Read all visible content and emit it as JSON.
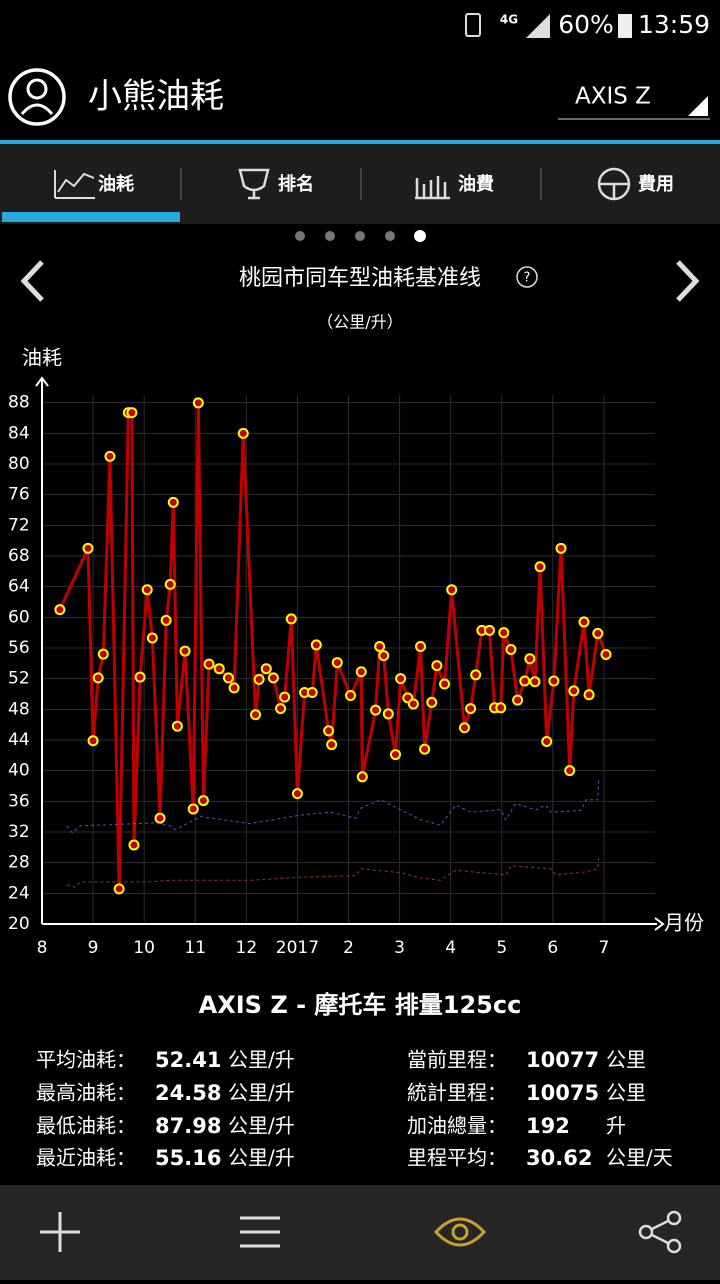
{
  "status_bar": {
    "network": "4G",
    "battery": "60%",
    "time": "13:59"
  },
  "header": {
    "title": "小熊油耗",
    "vehicle": "AXIS Z"
  },
  "tabs": [
    "油耗",
    "排名",
    "油費",
    "費用"
  ],
  "chart_data": {
    "type": "line",
    "title": "桃园市同车型油耗基准线",
    "subtitle": "（公里/升）",
    "y_label": "油耗",
    "x_label": "月份",
    "xlim": [
      0,
      12
    ],
    "xticks": [
      {
        "value": 0,
        "label": "8"
      },
      {
        "value": 1,
        "label": "9"
      },
      {
        "value": 2,
        "label": "10"
      },
      {
        "value": 3,
        "label": "11"
      },
      {
        "value": 4,
        "label": "12"
      },
      {
        "value": 5,
        "label": "2017"
      },
      {
        "value": 6,
        "label": "2"
      },
      {
        "value": 7,
        "label": "3"
      },
      {
        "value": 8,
        "label": "4"
      },
      {
        "value": 9,
        "label": "5"
      },
      {
        "value": 10,
        "label": "6"
      },
      {
        "value": 11,
        "label": "7"
      }
    ],
    "ylim": [
      20,
      89
    ],
    "yticks": [
      20,
      24,
      28,
      32,
      36,
      40,
      44,
      48,
      52,
      56,
      60,
      64,
      68,
      72,
      76,
      80,
      84,
      88
    ],
    "grid": true,
    "series": [
      {
        "color": "#c00000",
        "marker_color": "#ffff00",
        "markers": true,
        "dashed": false,
        "x": [
          0.35,
          0.9,
          1.0,
          1.1,
          1.2,
          1.33,
          1.51,
          1.69,
          1.76,
          1.8,
          1.92,
          2.06,
          2.16,
          2.31,
          2.43,
          2.51,
          2.57,
          2.65,
          2.8,
          2.96,
          3.06,
          3.16,
          3.27,
          3.47,
          3.65,
          3.76,
          3.94,
          4.18,
          4.25,
          4.39,
          4.53,
          4.67,
          4.75,
          4.88,
          5.0,
          5.14,
          5.29,
          5.37,
          5.61,
          5.67,
          5.78,
          6.04,
          6.25,
          6.27,
          6.53,
          6.61,
          6.69,
          6.78,
          6.92,
          7.02,
          7.16,
          7.27,
          7.41,
          7.49,
          7.63,
          7.73,
          7.88,
          8.02,
          8.27,
          8.39,
          8.49,
          8.61,
          8.76,
          8.86,
          8.98,
          9.04,
          9.18,
          9.31,
          9.45,
          9.55,
          9.65,
          9.75,
          9.88,
          10.02,
          10.16,
          10.33,
          10.41,
          10.61,
          10.71,
          10.88,
          11.04
        ],
        "values": [
          61.0,
          69.0,
          43.9,
          52.1,
          55.2,
          81.0,
          24.58,
          86.7,
          86.7,
          30.3,
          52.2,
          63.6,
          57.3,
          33.8,
          59.6,
          64.3,
          75.0,
          45.8,
          55.6,
          35.0,
          87.98,
          36.1,
          53.9,
          53.3,
          52.1,
          50.8,
          84.0,
          47.3,
          51.9,
          53.3,
          52.1,
          48.1,
          49.6,
          59.8,
          37.0,
          50.2,
          50.2,
          56.4,
          45.2,
          43.4,
          54.1,
          49.8,
          52.9,
          39.2,
          47.9,
          56.2,
          55.0,
          47.4,
          42.1,
          52.0,
          49.5,
          48.7,
          56.2,
          42.8,
          48.9,
          53.7,
          51.3,
          63.6,
          45.6,
          48.1,
          52.5,
          58.3,
          58.3,
          48.2,
          48.2,
          58.0,
          55.8,
          49.2,
          51.7,
          54.6,
          51.6,
          66.6,
          43.8,
          51.7,
          69.0,
          40.0,
          50.4,
          59.4,
          49.9,
          57.9,
          55.16
        ]
      },
      {
        "color": "#3a5fcd",
        "markers": false,
        "dashed": true,
        "x": [
          0.49,
          0.59,
          0.75,
          2.22,
          2.51,
          2.61,
          3.1,
          4.08,
          5.06,
          5.65,
          6.14,
          6.24,
          6.63,
          7.02,
          7.41,
          7.8,
          8.1,
          8.39,
          8.98,
          9.08,
          9.27,
          9.67,
          9.86,
          9.96,
          10.55,
          10.65,
          10.88,
          10.9
        ],
        "values": [
          32.8,
          31.9,
          32.8,
          33.2,
          32.8,
          32.3,
          34.0,
          33.1,
          34.2,
          34.6,
          33.8,
          35.1,
          36.2,
          34.9,
          33.6,
          32.9,
          35.5,
          34.6,
          34.9,
          33.6,
          35.7,
          34.9,
          35.5,
          34.6,
          34.8,
          36.2,
          36.2,
          39.1
        ]
      },
      {
        "color": "#a03030",
        "markers": false,
        "dashed": true,
        "x": [
          0.49,
          0.65,
          0.75,
          2.12,
          2.51,
          4.08,
          5.06,
          6.14,
          6.24,
          7.02,
          7.41,
          7.8,
          8.1,
          9.08,
          9.18,
          9.96,
          10.06,
          10.65,
          10.88,
          10.9
        ],
        "values": [
          25.1,
          24.8,
          25.5,
          25.5,
          25.7,
          25.7,
          26.1,
          26.3,
          27.2,
          26.7,
          26.0,
          25.7,
          27.0,
          26.4,
          27.6,
          27.2,
          26.4,
          26.8,
          27.2,
          29.0
        ]
      }
    ]
  },
  "stats": {
    "title": "AXIS Z - 摩托车 排量125cc",
    "left": [
      {
        "label": "平均油耗：",
        "value": 52.41,
        "unit": "公里/升"
      },
      {
        "label": "最高油耗：",
        "value": 24.58,
        "unit": "公里/升"
      },
      {
        "label": "最低油耗：",
        "value": 87.98,
        "unit": "公里/升"
      },
      {
        "label": "最近油耗：",
        "value": 55.16,
        "unit": "公里/升"
      }
    ],
    "right": [
      {
        "label": "當前里程：",
        "value": 10077,
        "unit": "公里"
      },
      {
        "label": "統計里程：",
        "value": 10075,
        "unit": "公里"
      },
      {
        "label": "加油總量：",
        "value": 192,
        "unit": "升"
      },
      {
        "label": "里程平均：",
        "value": 30.62,
        "unit": "公里/天"
      }
    ]
  }
}
